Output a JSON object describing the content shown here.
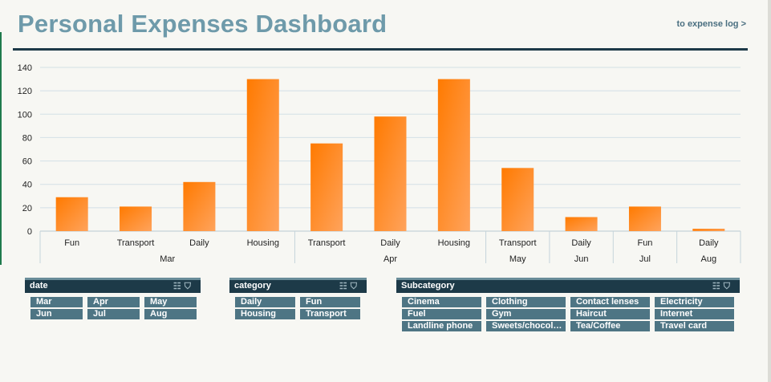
{
  "header": {
    "title": "Personal Expenses Dashboard",
    "link_label": "to expense log >"
  },
  "chart_data": {
    "type": "bar",
    "categories": [
      "Fun",
      "Transport",
      "Daily",
      "Housing",
      "Transport",
      "Daily",
      "Housing",
      "Transport",
      "Daily",
      "Fun",
      "Daily"
    ],
    "groups": [
      {
        "label": "Mar",
        "count": 4
      },
      {
        "label": "Apr",
        "count": 3
      },
      {
        "label": "May",
        "count": 1
      },
      {
        "label": "Jun",
        "count": 1
      },
      {
        "label": "Jul",
        "count": 1
      },
      {
        "label": "Aug",
        "count": 1
      }
    ],
    "values": [
      29,
      21,
      42,
      130,
      75,
      98,
      130,
      54,
      12,
      21,
      2
    ],
    "ylim": [
      0,
      140
    ],
    "yticks": [
      0,
      20,
      40,
      60,
      80,
      100,
      120,
      140
    ],
    "grid": true,
    "bar_color_top": "#ff7a00",
    "bar_color_bottom": "#ffa35c"
  },
  "slicers": {
    "date": {
      "title": "date",
      "items": [
        "Mar",
        "Apr",
        "May",
        "Jun",
        "Jul",
        "Aug"
      ]
    },
    "category": {
      "title": "category",
      "items": [
        "Daily",
        "Fun",
        "Housing",
        "Transport"
      ]
    },
    "subcategory": {
      "title": "Subcategory",
      "items": [
        "Cinema",
        "Clothing",
        "Contact lenses",
        "Electricity",
        "Fuel",
        "Gym",
        "Haircut",
        "Internet",
        "Landline phone",
        "Sweets/chocol…",
        "Tea/Coffee",
        "Travel card"
      ]
    }
  },
  "icons": {
    "multiselect": "multi-select-icon",
    "clear_filter": "clear-filter-icon"
  }
}
